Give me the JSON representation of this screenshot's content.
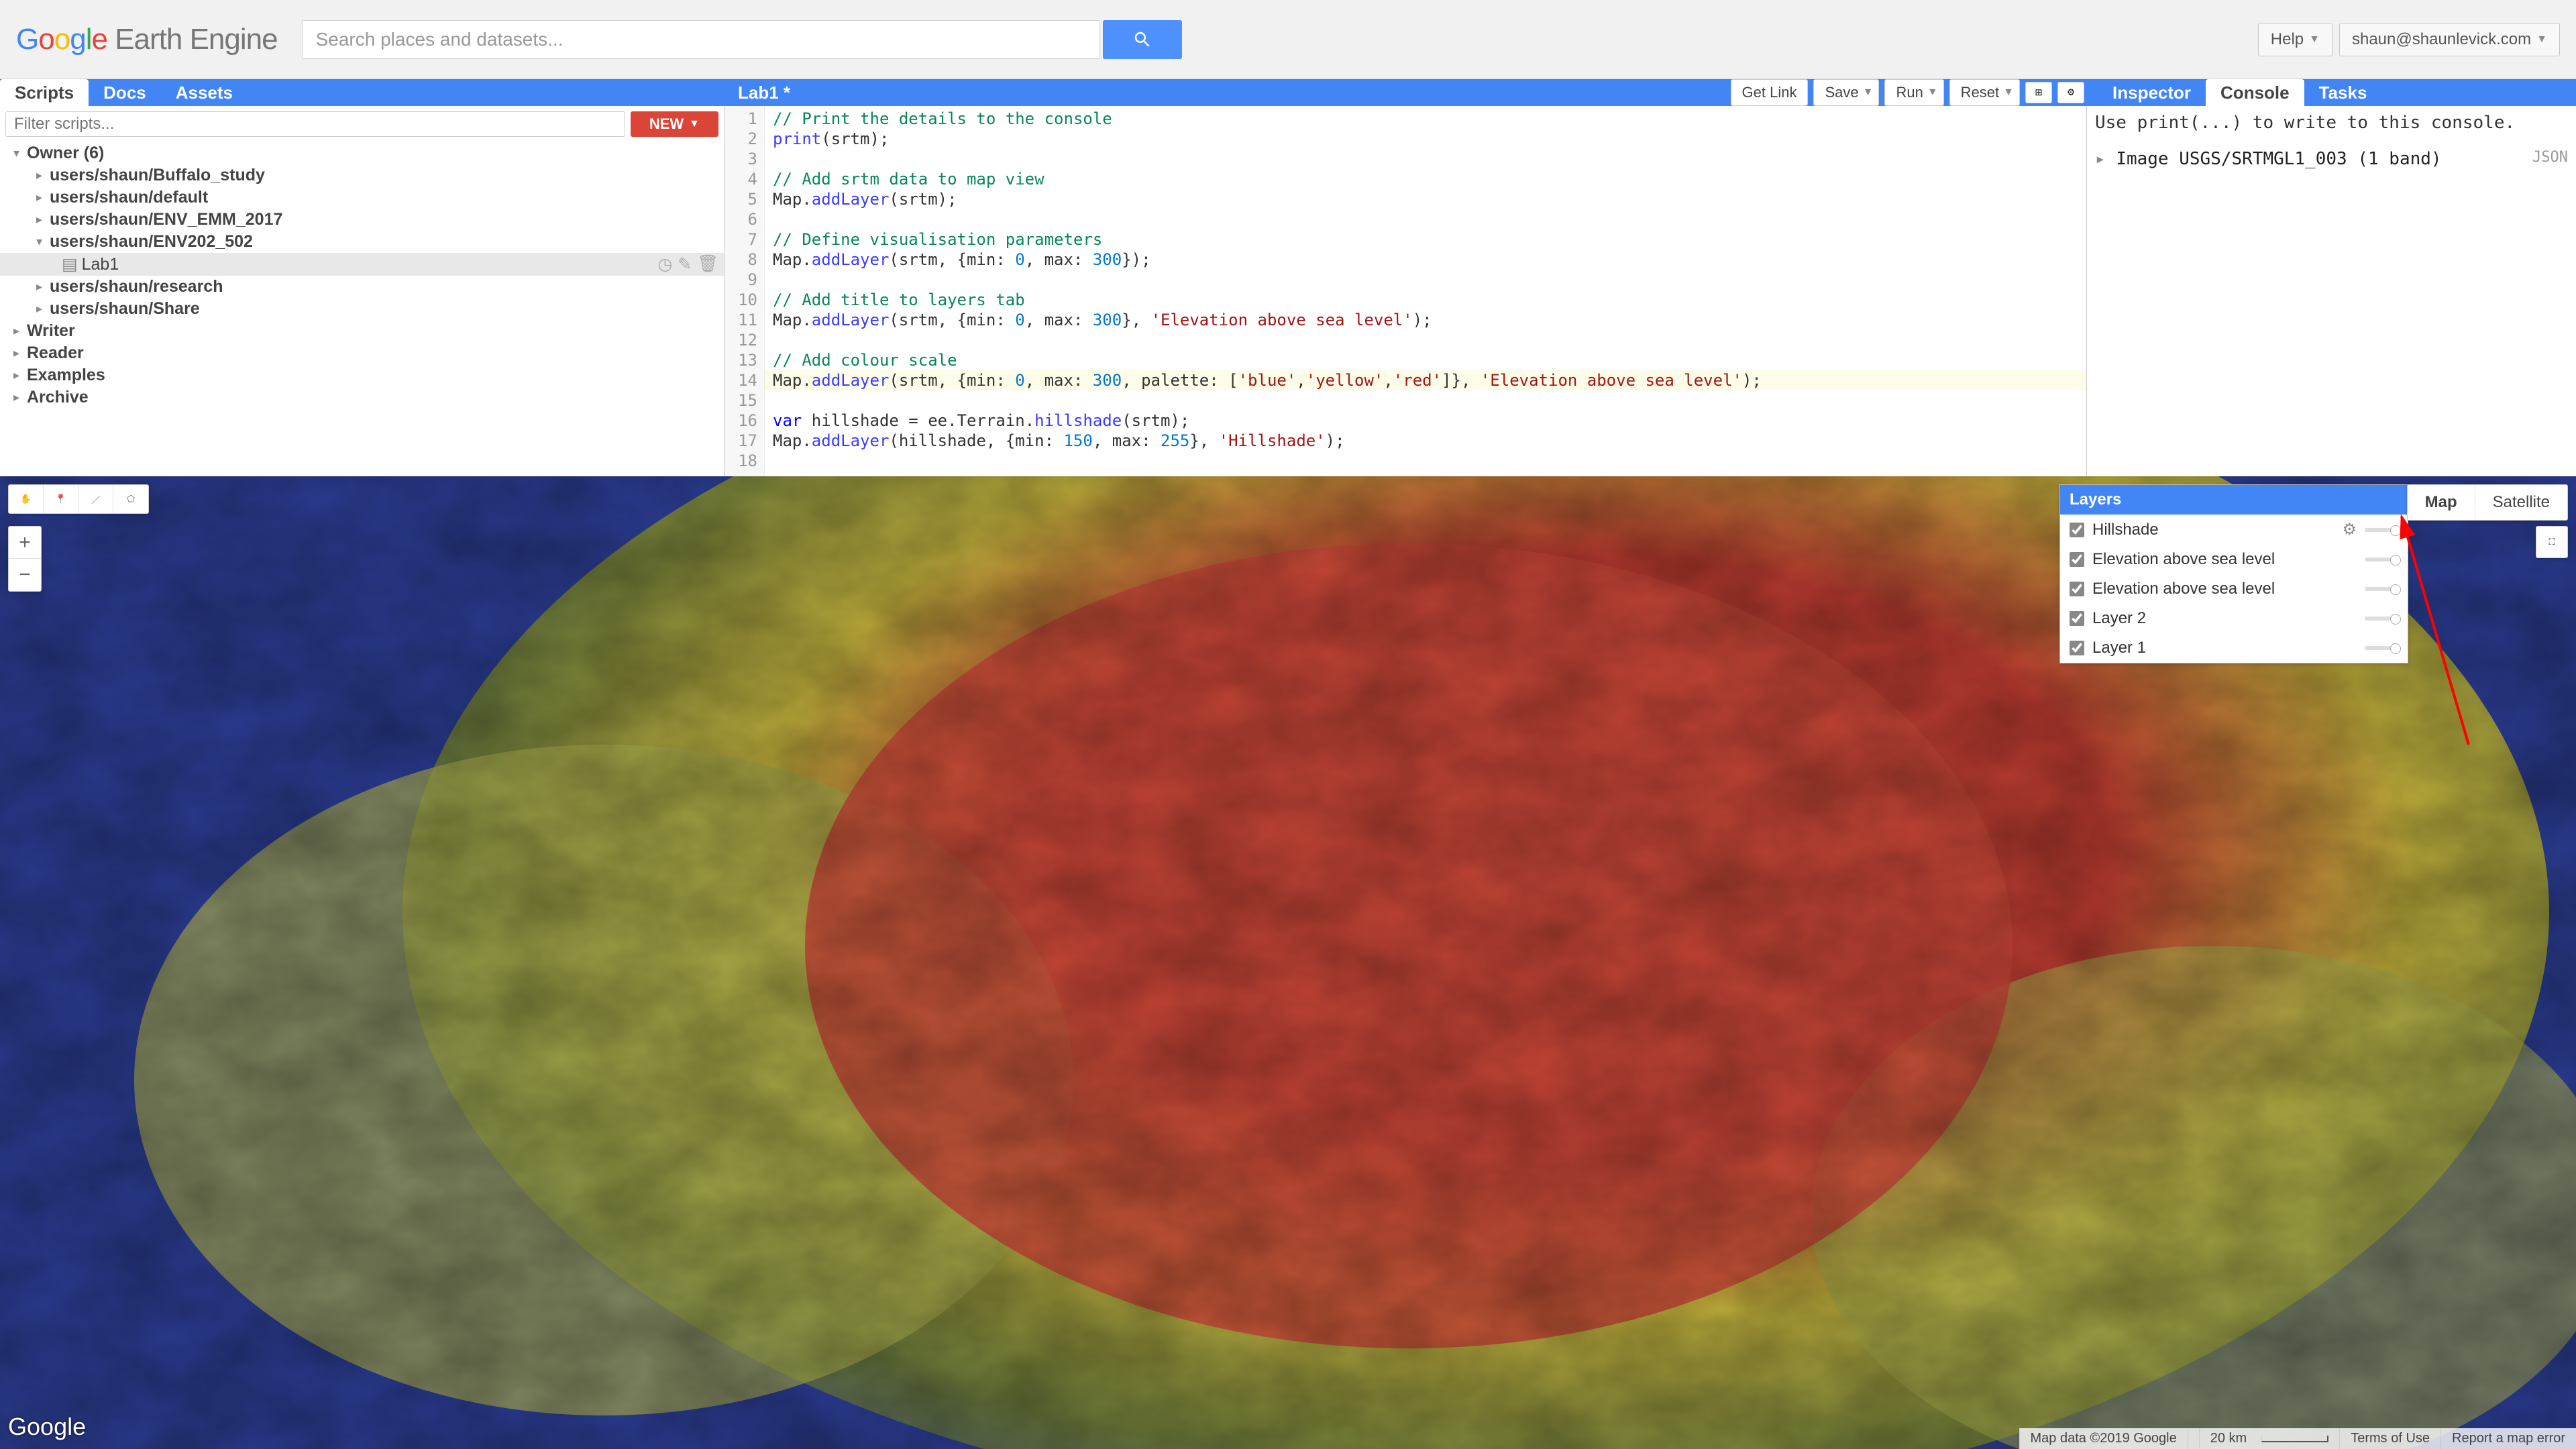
{
  "header": {
    "logo_brand": "Google",
    "logo_product": "Earth Engine",
    "search_placeholder": "Search places and datasets...",
    "help_label": "Help",
    "user_email": "shaun@shaunlevick.com"
  },
  "left_panel": {
    "tabs": [
      "Scripts",
      "Docs",
      "Assets"
    ],
    "active_tab": 0,
    "filter_placeholder": "Filter scripts...",
    "new_button": "NEW",
    "tree": {
      "owner_label": "Owner  (6)",
      "owner_children": [
        "users/shaun/Buffalo_study",
        "users/shaun/default",
        "users/shaun/ENV_EMM_2017",
        "users/shaun/ENV202_502",
        "users/shaun/research",
        "users/shaun/Share"
      ],
      "selected_script": "Lab1",
      "sections": [
        "Writer",
        "Reader",
        "Examples",
        "Archive"
      ]
    }
  },
  "editor": {
    "title": "Lab1 *",
    "buttons": {
      "get_link": "Get Link",
      "save": "Save",
      "run": "Run",
      "reset": "Reset"
    },
    "code_lines": [
      {
        "n": 1,
        "html": "<span class='c-comment'>// Print the details to the console</span>"
      },
      {
        "n": 2,
        "html": "<span class='c-fn'>print</span>(srtm);"
      },
      {
        "n": 3,
        "html": ""
      },
      {
        "n": 4,
        "html": "<span class='c-comment'>// Add srtm data to map view</span>"
      },
      {
        "n": 5,
        "html": "Map.<span class='c-fn'>addLayer</span>(srtm);"
      },
      {
        "n": 6,
        "html": ""
      },
      {
        "n": 7,
        "html": "<span class='c-comment'>// Define visualisation parameters</span>"
      },
      {
        "n": 8,
        "html": "Map.<span class='c-fn'>addLayer</span>(srtm, {min: <span class='c-num'>0</span>, max: <span class='c-num'>300</span>});"
      },
      {
        "n": 9,
        "html": ""
      },
      {
        "n": 10,
        "html": "<span class='c-comment'>// Add title to layers tab</span>"
      },
      {
        "n": 11,
        "html": "Map.<span class='c-fn'>addLayer</span>(srtm, {min: <span class='c-num'>0</span>, max: <span class='c-num'>300</span>}, <span class='c-str'>'Elevation above sea level'</span>);"
      },
      {
        "n": 12,
        "html": ""
      },
      {
        "n": 13,
        "html": "<span class='c-comment'>// Add colour scale</span>"
      },
      {
        "n": 14,
        "html": "Map.<span class='c-fn'>addLayer</span>(srtm, {min: <span class='c-num'>0</span>, max: <span class='c-num'>300</span>, palette: [<span class='c-str'>'blue'</span>,<span class='c-str'>'yellow'</span>,<span class='c-str'>'red'</span>]}, <span class='c-str'>'Elevation above sea level'</span>);"
      },
      {
        "n": 15,
        "html": ""
      },
      {
        "n": 16,
        "html": "<span class='c-kw'>var</span> hillshade = ee.Terrain.<span class='c-fn'>hillshade</span>(srtm);"
      },
      {
        "n": 17,
        "html": "Map.<span class='c-fn'>addLayer</span>(hillshade, {min: <span class='c-num'>150</span>, max: <span class='c-num'>255</span>}, <span class='c-str'>'Hillshade'</span>);"
      },
      {
        "n": 18,
        "html": ""
      }
    ],
    "highlighted_line": 14
  },
  "right_panel": {
    "tabs": [
      "Inspector",
      "Console",
      "Tasks"
    ],
    "active_tab": 1,
    "hint": "Use print(...) to write to this console.",
    "output": "Image USGS/SRTMGL1_003 (1 band)",
    "json_link": "JSON"
  },
  "map": {
    "layers_header": "Layers",
    "layers": [
      {
        "name": "Hillshade",
        "checked": true,
        "gear": true
      },
      {
        "name": "Elevation above sea level",
        "checked": true
      },
      {
        "name": "Elevation above sea level",
        "checked": true
      },
      {
        "name": "Layer 2",
        "checked": true
      },
      {
        "name": "Layer 1",
        "checked": true
      }
    ],
    "maptype": {
      "map": "Map",
      "satellite": "Satellite",
      "active": "map"
    },
    "footer": {
      "copyright": "Map data ©2019 Google",
      "scale": "20 km",
      "terms": "Terms of Use",
      "report": "Report a map error"
    },
    "palette": {
      "low": "#2a3b8f",
      "mid": "#a5a84a",
      "high": "#c44536"
    }
  }
}
